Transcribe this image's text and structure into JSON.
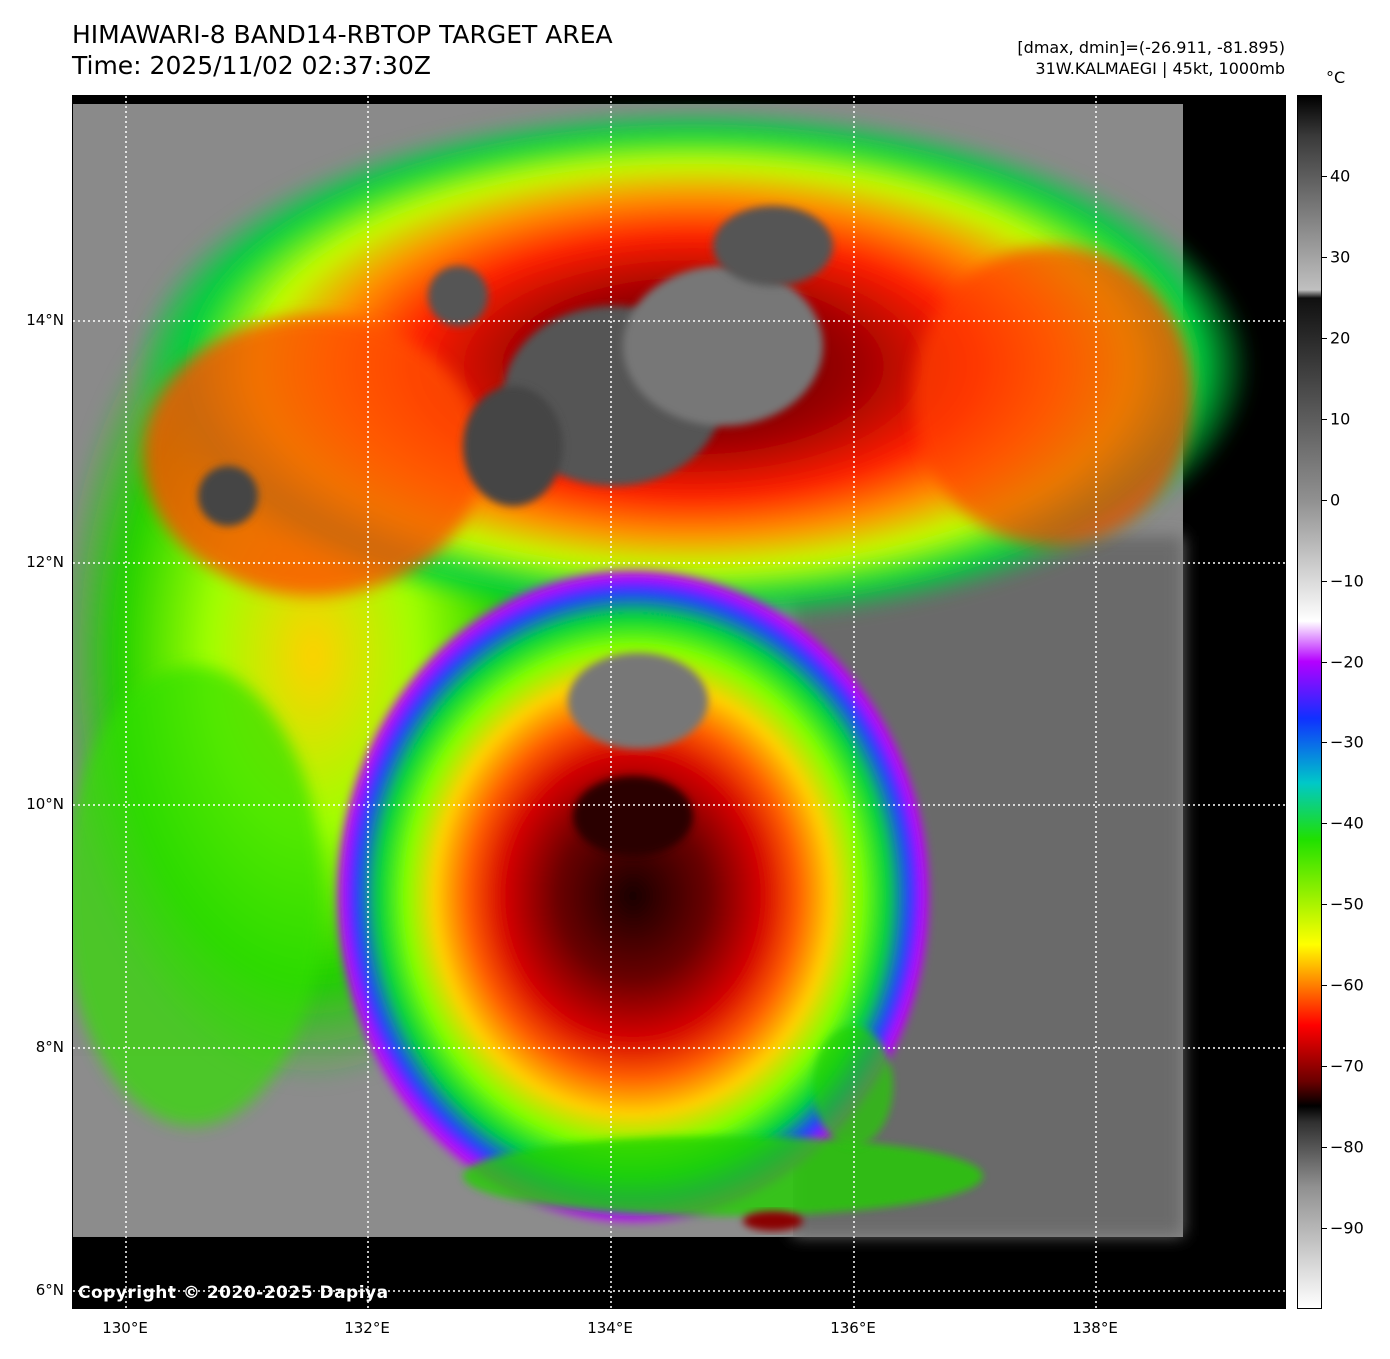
{
  "header": {
    "title_line1": "HIMAWARI-8 BAND14-RBTOP TARGET AREA",
    "title_line2": "Time: 2025/11/02 02:37:30Z",
    "range_text": "[dmax, dmin]=(-26.911, -81.895)",
    "storm_text": "31W.KALMAEGI | 45kt, 1000mb"
  },
  "map": {
    "lat_labels": [
      "14°N",
      "12°N",
      "10°N",
      "8°N",
      "6°N"
    ],
    "lon_labels": [
      "130°E",
      "132°E",
      "134°E",
      "136°E",
      "138°E"
    ],
    "copyright": "Copyright © 2020-2025 Dapiya",
    "features": [
      "typhoon-eye-cloud-mass",
      "central-dense-overcast",
      "northern-convective-band",
      "southern-rainband"
    ]
  },
  "colorbar": {
    "unit": "°C",
    "ticks": [
      "40",
      "30",
      "20",
      "10",
      "0",
      "−10",
      "−20",
      "−30",
      "−40",
      "−50",
      "−60",
      "−70",
      "−80",
      "−90"
    ],
    "range_max": 50,
    "range_min": -100,
    "colors": {
      "warm_gray_top": "#3a3a3a",
      "white": "#ffffff",
      "purple": "#b400ff",
      "blue": "#1030ff",
      "cyan": "#00c8c8",
      "green": "#20e000",
      "yellow": "#ffff00",
      "orange": "#ff8000",
      "red": "#ff0000",
      "dark_red": "#6a0000",
      "black": "#000000"
    }
  }
}
